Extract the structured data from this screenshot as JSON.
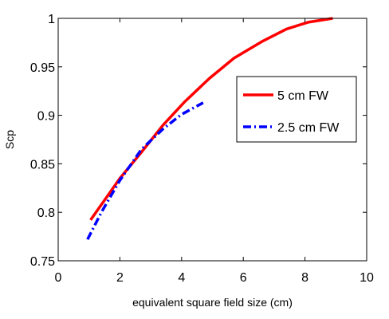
{
  "chart_data": {
    "type": "line",
    "xlabel": "equivalent square field size (cm)",
    "ylabel": "Scp",
    "xlim": [
      0,
      10
    ],
    "ylim": [
      0.75,
      1.0
    ],
    "xticks": [
      0,
      2,
      4,
      6,
      8,
      10
    ],
    "yticks": [
      0.75,
      0.8,
      0.85,
      0.9,
      0.95,
      1.0
    ],
    "xtick_labels": [
      "0",
      "2",
      "4",
      "6",
      "8",
      "10"
    ],
    "ytick_labels": [
      "0.75",
      "0.8",
      "0.85",
      "0.9",
      "0.95",
      "1"
    ],
    "grid": false,
    "legend_position": "upper-right",
    "series": [
      {
        "name": "5 cm FW",
        "color": "#ff0000",
        "style": "solid",
        "x": [
          1.05,
          2.0,
          2.7,
          3.4,
          4.1,
          4.9,
          5.7,
          6.6,
          7.4,
          8.1,
          8.9
        ],
        "y": [
          0.792,
          0.835,
          0.862,
          0.89,
          0.914,
          0.938,
          0.959,
          0.976,
          0.989,
          0.996,
          1.0
        ]
      },
      {
        "name": "2.5 cm FW",
        "color": "#0000ff",
        "style": "dashdot",
        "x": [
          0.95,
          1.4,
          2.0,
          2.7,
          3.4,
          4.0,
          4.7
        ],
        "y": [
          0.772,
          0.8,
          0.833,
          0.865,
          0.886,
          0.901,
          0.913
        ]
      }
    ]
  }
}
